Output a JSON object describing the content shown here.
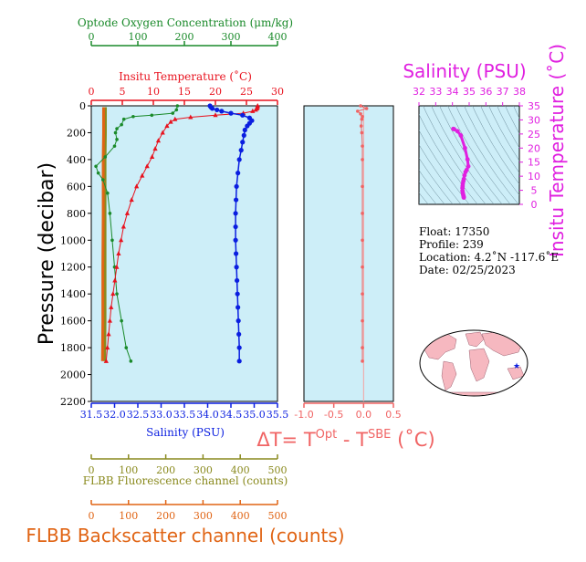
{
  "colors": {
    "oxygen": "#1a8a2a",
    "temperature": "#e8121e",
    "salinity": "#0a1ee0",
    "fluorescence": "#8a8a1e",
    "backscatter": "#e06414",
    "deltaT": "#f06464",
    "magenta": "#e020e0",
    "panel_bg": "#cdeef8"
  },
  "labels": {
    "oxygen_axis": "Optode Oxygen Concentration (μm/kg)",
    "temperature_axis": "Insitu Temperature (˚C)",
    "pressure_axis": "Pressure (decibar)",
    "salinity_axis": "Salinity (PSU)",
    "fluorescence_axis": "FLBB Fluorescence channel (counts)",
    "backscatter_axis": "FLBB Backscatter channel (counts)",
    "delta_t_prefix": "ΔT= T",
    "delta_t_sup1": "Opt",
    "delta_t_mid": " - T",
    "delta_t_sup2": "SBE",
    "delta_t_suffix": " (˚C)",
    "ts_salinity_title": "Salinity (PSU)",
    "ts_temperature_title": "Insitu Temperature (˚C)"
  },
  "float_info": {
    "float": "Float:  17350",
    "profile": "Profile:  239",
    "location": "Location:  4.2˚N  -117.6˚E",
    "date": "Date:  02/25/2023"
  },
  "chart_data": [
    {
      "type": "line",
      "panel": "main-profile",
      "y_axis": {
        "label": "Pressure (decibar)",
        "range": [
          2200,
          0
        ],
        "ticks": [
          0,
          200,
          400,
          600,
          800,
          1000,
          1200,
          1400,
          1600,
          1800,
          2000,
          2200
        ]
      },
      "x_axes": {
        "salinity": {
          "range": [
            31.5,
            35.5
          ],
          "ticks": [
            "31.5",
            "32.0",
            "32.5",
            "33.0",
            "33.5",
            "34.0",
            "34.5",
            "35.0",
            "35.5"
          ]
        },
        "temperature": {
          "range": [
            0,
            30
          ],
          "ticks": [
            "0",
            "5",
            "10",
            "15",
            "20",
            "25",
            "30"
          ]
        },
        "oxygen": {
          "range": [
            0,
            400
          ],
          "ticks": [
            "0",
            "100",
            "200",
            "300",
            "400"
          ]
        },
        "fluorescence": {
          "range": [
            0,
            500
          ],
          "ticks": [
            "0",
            "100",
            "200",
            "300",
            "400",
            "500"
          ]
        },
        "backscatter": {
          "range": [
            0,
            500
          ],
          "ticks": [
            "0",
            "100",
            "200",
            "300",
            "400",
            "500"
          ]
        }
      },
      "series": [
        {
          "name": "Insitu Temperature (˚C)",
          "axis": "temperature",
          "points": [
            [
              26.8,
              0
            ],
            [
              26.8,
              10
            ],
            [
              26.7,
              20
            ],
            [
              26.5,
              30
            ],
            [
              26.0,
              40
            ],
            [
              24.5,
              55
            ],
            [
              20.0,
              70
            ],
            [
              16.0,
              85
            ],
            [
              13.5,
              100
            ],
            [
              12.8,
              120
            ],
            [
              12.2,
              150
            ],
            [
              11.5,
              200
            ],
            [
              10.8,
              260
            ],
            [
              10.3,
              320
            ],
            [
              9.8,
              380
            ],
            [
              9.0,
              450
            ],
            [
              8.2,
              520
            ],
            [
              7.3,
              600
            ],
            [
              6.5,
              700
            ],
            [
              5.8,
              800
            ],
            [
              5.2,
              900
            ],
            [
              4.8,
              1000
            ],
            [
              4.4,
              1100
            ],
            [
              4.1,
              1200
            ],
            [
              3.8,
              1300
            ],
            [
              3.5,
              1400
            ],
            [
              3.2,
              1500
            ],
            [
              3.0,
              1600
            ],
            [
              2.8,
              1700
            ],
            [
              2.6,
              1800
            ],
            [
              2.4,
              1900
            ]
          ]
        },
        {
          "name": "Salinity (PSU)",
          "axis": "salinity",
          "points": [
            [
              34.05,
              0
            ],
            [
              34.07,
              10
            ],
            [
              34.1,
              20
            ],
            [
              34.2,
              30
            ],
            [
              34.3,
              40
            ],
            [
              34.5,
              55
            ],
            [
              34.75,
              70
            ],
            [
              34.9,
              90
            ],
            [
              34.95,
              110
            ],
            [
              34.9,
              130
            ],
            [
              34.85,
              150
            ],
            [
              34.8,
              180
            ],
            [
              34.78,
              220
            ],
            [
              34.75,
              270
            ],
            [
              34.72,
              330
            ],
            [
              34.68,
              400
            ],
            [
              34.65,
              500
            ],
            [
              34.62,
              600
            ],
            [
              34.61,
              700
            ],
            [
              34.6,
              800
            ],
            [
              34.6,
              900
            ],
            [
              34.6,
              1000
            ],
            [
              34.61,
              1100
            ],
            [
              34.62,
              1200
            ],
            [
              34.63,
              1300
            ],
            [
              34.64,
              1400
            ],
            [
              34.65,
              1500
            ],
            [
              34.66,
              1600
            ],
            [
              34.67,
              1700
            ],
            [
              34.68,
              1800
            ],
            [
              34.68,
              1900
            ]
          ]
        },
        {
          "name": "Optode Oxygen Concentration (μm/kg)",
          "axis": "oxygen",
          "points": [
            [
              185,
              0
            ],
            [
              183,
              30
            ],
            [
              175,
              55
            ],
            [
              130,
              70
            ],
            [
              90,
              80
            ],
            [
              70,
              100
            ],
            [
              65,
              140
            ],
            [
              55,
              170
            ],
            [
              52,
              200
            ],
            [
              55,
              250
            ],
            [
              50,
              300
            ],
            [
              30,
              380
            ],
            [
              10,
              450
            ],
            [
              15,
              500
            ],
            [
              25,
              550
            ],
            [
              35,
              650
            ],
            [
              40,
              800
            ],
            [
              45,
              1000
            ],
            [
              50,
              1200
            ],
            [
              55,
              1400
            ],
            [
              65,
              1600
            ],
            [
              75,
              1800
            ],
            [
              85,
              1900
            ]
          ]
        },
        {
          "name": "FLBB Fluorescence channel (counts)",
          "axis": "fluorescence",
          "points": [
            [
              38,
              10
            ],
            [
              38,
              200
            ],
            [
              37,
              400
            ],
            [
              37,
              800
            ],
            [
              37,
              1200
            ],
            [
              37,
              1600
            ],
            [
              36,
              1900
            ]
          ]
        },
        {
          "name": "FLBB Backscatter channel (counts)",
          "axis": "backscatter",
          "points": [
            [
              33,
              10
            ],
            [
              33,
              200
            ],
            [
              32,
              400
            ],
            [
              32,
              800
            ],
            [
              31,
              1200
            ],
            [
              31,
              1600
            ],
            [
              30,
              1900
            ]
          ]
        }
      ]
    },
    {
      "type": "line",
      "panel": "delta-t",
      "x_axis": {
        "range": [
          -1.0,
          0.5
        ],
        "ticks": [
          "-1.0",
          "-0.5",
          "0.0",
          "0.5"
        ]
      },
      "y_axis": {
        "range": [
          2200,
          0
        ]
      },
      "series": [
        {
          "name": "ΔT",
          "points": [
            [
              -0.05,
              0
            ],
            [
              0.05,
              20
            ],
            [
              -0.1,
              40
            ],
            [
              -0.05,
              60
            ],
            [
              -0.02,
              80
            ],
            [
              -0.03,
              100
            ],
            [
              -0.04,
              150
            ],
            [
              -0.03,
              200
            ],
            [
              -0.02,
              300
            ],
            [
              -0.02,
              400
            ],
            [
              -0.02,
              600
            ],
            [
              -0.02,
              800
            ],
            [
              -0.02,
              1000
            ],
            [
              -0.02,
              1200
            ],
            [
              -0.02,
              1400
            ],
            [
              -0.02,
              1600
            ],
            [
              -0.02,
              1800
            ],
            [
              -0.02,
              1900
            ]
          ]
        }
      ]
    },
    {
      "type": "scatter",
      "panel": "t-s-diagram",
      "x_axis": {
        "label": "Salinity (PSU)",
        "range": [
          32,
          38
        ],
        "ticks": [
          "32",
          "33",
          "34",
          "35",
          "36",
          "37",
          "38"
        ]
      },
      "y_axis": {
        "label": "Insitu Temperature (˚C)",
        "range": [
          0,
          35
        ],
        "ticks": [
          "0",
          "5",
          "10",
          "15",
          "20",
          "25",
          "30",
          "35"
        ]
      },
      "series": [
        {
          "name": "T-S",
          "points": [
            [
              34.05,
              26.8
            ],
            [
              34.1,
              26.7
            ],
            [
              34.3,
              26.0
            ],
            [
              34.5,
              24.5
            ],
            [
              34.75,
              20.0
            ],
            [
              34.9,
              16.0
            ],
            [
              34.95,
              13.5
            ],
            [
              34.85,
              12.2
            ],
            [
              34.78,
              11.5
            ],
            [
              34.72,
              10.3
            ],
            [
              34.68,
              9.0
            ],
            [
              34.65,
              8.2
            ],
            [
              34.62,
              7.3
            ],
            [
              34.61,
              6.5
            ],
            [
              34.6,
              5.8
            ],
            [
              34.6,
              4.8
            ],
            [
              34.62,
              4.1
            ],
            [
              34.64,
              3.5
            ],
            [
              34.66,
              3.0
            ],
            [
              34.68,
              2.6
            ],
            [
              34.68,
              2.4
            ]
          ]
        }
      ]
    }
  ]
}
